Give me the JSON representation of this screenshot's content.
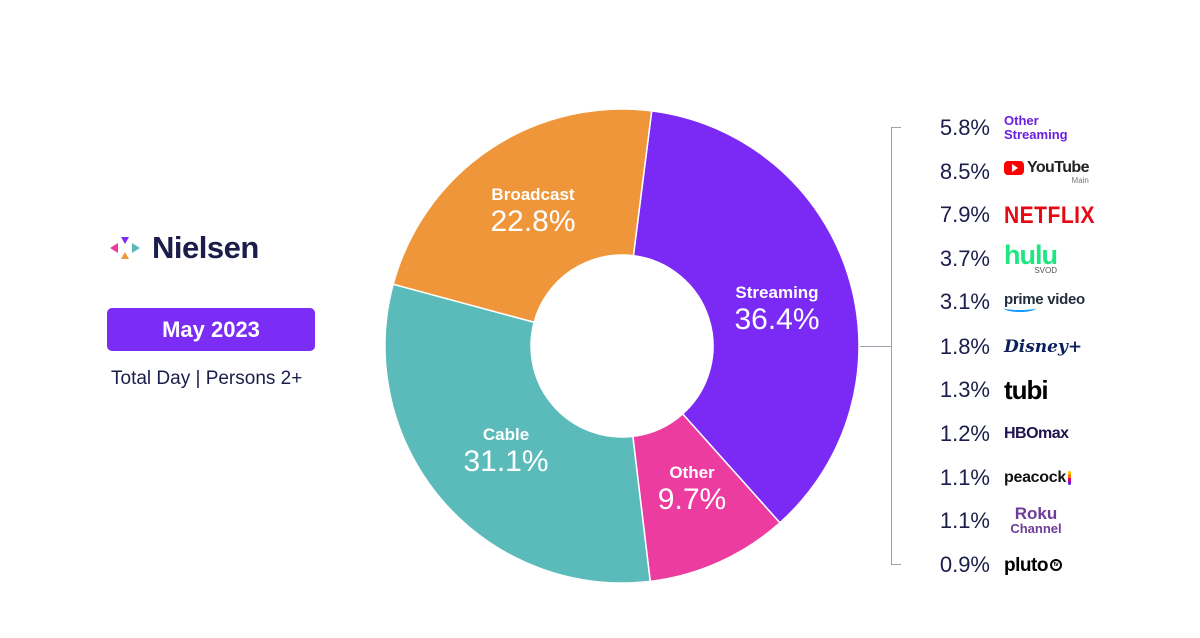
{
  "brand": {
    "name": "Nielsen",
    "logo_icon": "nielsen-logo-icon"
  },
  "period": "May 2023",
  "subtitle": "Total Day | Persons 2+",
  "colors": {
    "streaming": "#7b2af6",
    "other": "#ec3c9f",
    "cable": "#5abbba",
    "broadcast": "#f0963a",
    "badge": "#7b2cf5"
  },
  "chart_data": {
    "type": "pie",
    "donut": true,
    "title": "",
    "slices": [
      {
        "name": "Streaming",
        "value": 36.4,
        "label": "36.4%"
      },
      {
        "name": "Other",
        "value": 9.7,
        "label": "9.7%"
      },
      {
        "name": "Cable",
        "value": 31.1,
        "label": "31.1%"
      },
      {
        "name": "Broadcast",
        "value": 22.8,
        "label": "22.8%"
      }
    ],
    "streaming_breakdown": [
      {
        "name": "Other Streaming",
        "value": 5.8,
        "label": "5.8%",
        "icon": "other-streaming-logo"
      },
      {
        "name": "YouTube",
        "sub": "Main",
        "value": 8.5,
        "label": "8.5%",
        "icon": "youtube-logo"
      },
      {
        "name": "NETFLIX",
        "value": 7.9,
        "label": "7.9%",
        "icon": "netflix-logo"
      },
      {
        "name": "hulu",
        "sub": "SVOD",
        "value": 3.7,
        "label": "3.7%",
        "icon": "hulu-logo"
      },
      {
        "name": "prime video",
        "value": 3.1,
        "label": "3.1%",
        "icon": "prime-video-logo"
      },
      {
        "name": "Disney+",
        "value": 1.8,
        "label": "1.8%",
        "icon": "disney-plus-logo"
      },
      {
        "name": "tubi",
        "value": 1.3,
        "label": "1.3%",
        "icon": "tubi-logo"
      },
      {
        "name": "HBOmax",
        "value": 1.2,
        "label": "1.2%",
        "icon": "hbo-max-logo"
      },
      {
        "name": "peacock",
        "value": 1.1,
        "label": "1.1%",
        "icon": "peacock-logo"
      },
      {
        "name": "Roku",
        "sub": "Channel",
        "value": 1.1,
        "label": "1.1%",
        "icon": "roku-channel-logo"
      },
      {
        "name": "pluto",
        "value": 0.9,
        "label": "0.9%",
        "icon": "pluto-tv-logo"
      }
    ]
  }
}
